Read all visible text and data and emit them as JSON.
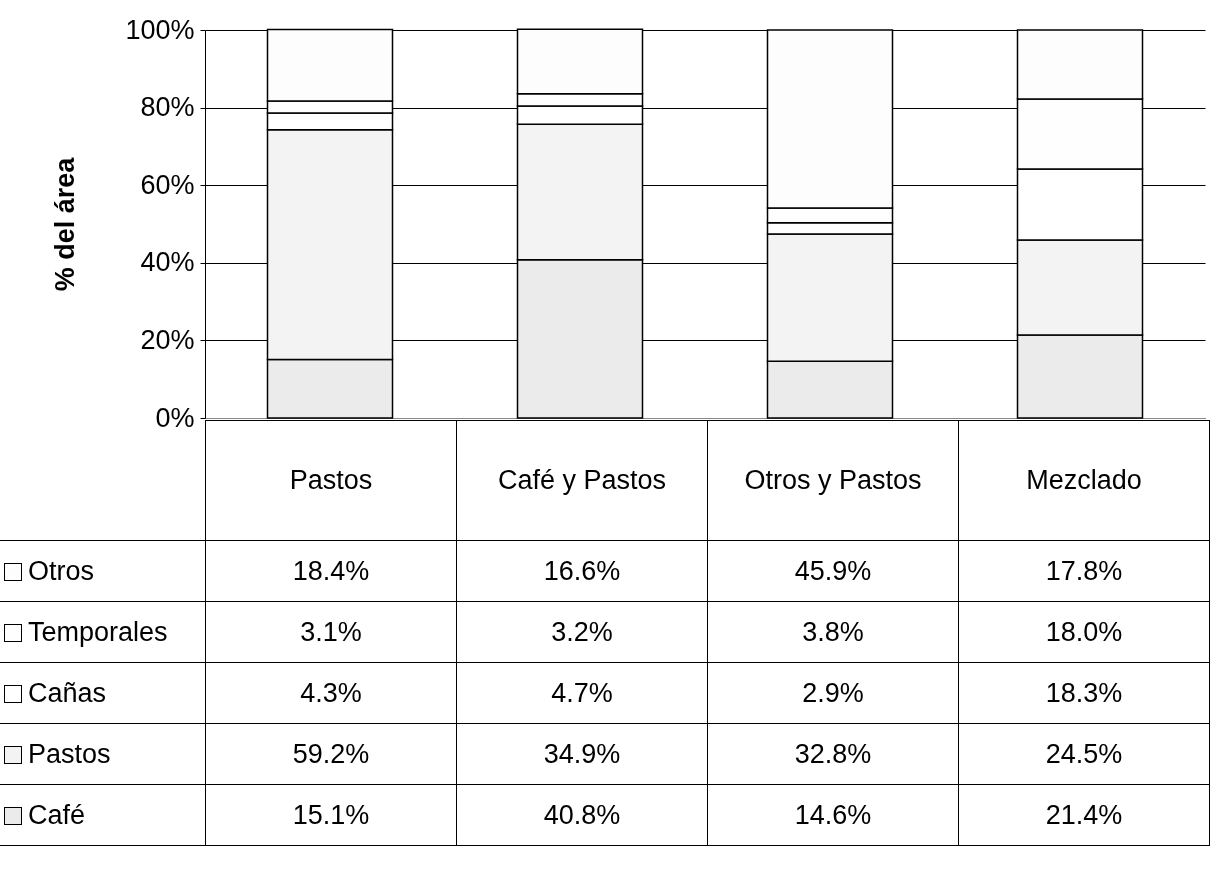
{
  "chart_data": {
    "type": "bar",
    "stacked": true,
    "ylabel": "% del área",
    "categories": [
      "Pastos",
      "Café y Pastos",
      "Otros y Pastos",
      "Mezclado"
    ],
    "series": [
      {
        "name": "Café",
        "color": "#ebebeb",
        "values": [
          15.1,
          40.8,
          14.6,
          21.4
        ],
        "value_labels": [
          "15.1%",
          "40.8%",
          "14.6%",
          "21.4%"
        ]
      },
      {
        "name": "Pastos",
        "color": "#f3f3f3",
        "values": [
          59.2,
          34.9,
          32.8,
          24.5
        ],
        "value_labels": [
          "59.2%",
          "34.9%",
          "32.8%",
          "24.5%"
        ]
      },
      {
        "name": "Cañas",
        "color": "#ffffff",
        "values": [
          4.3,
          4.7,
          2.9,
          18.3
        ],
        "value_labels": [
          "4.3%",
          "4.7%",
          "2.9%",
          "18.3%"
        ]
      },
      {
        "name": "Temporales",
        "color": "#fefefe",
        "values": [
          3.1,
          3.2,
          3.8,
          18.0
        ],
        "value_labels": [
          "3.1%",
          "3.2%",
          "3.8%",
          "18.0%"
        ]
      },
      {
        "name": "Otros",
        "color": "#fdfdfd",
        "values": [
          18.4,
          16.6,
          45.9,
          17.8
        ],
        "value_labels": [
          "18.4%",
          "16.6%",
          "45.9%",
          "17.8%"
        ]
      }
    ],
    "ylim": [
      0,
      100
    ],
    "yticks": [
      {
        "value": 0,
        "label": "0%"
      },
      {
        "value": 20,
        "label": "20%"
      },
      {
        "value": 40,
        "label": "40%"
      },
      {
        "value": 60,
        "label": "60%"
      },
      {
        "value": 80,
        "label": "80%"
      },
      {
        "value": 100,
        "label": "100%"
      }
    ],
    "grid": "y",
    "legend": "bottom left"
  }
}
